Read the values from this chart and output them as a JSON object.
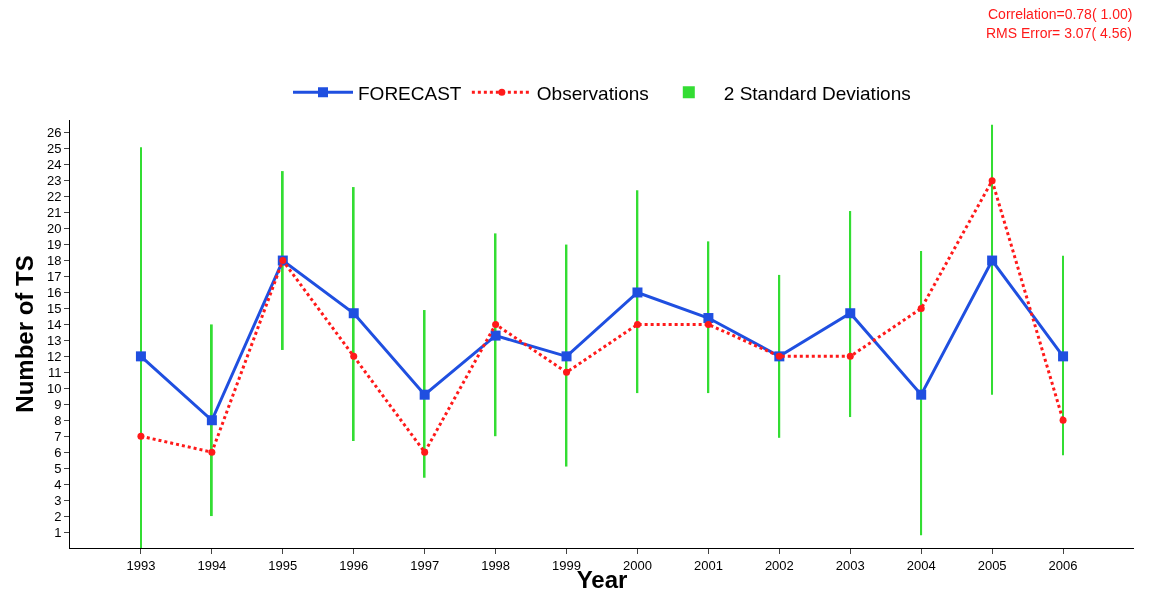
{
  "chart_data": {
    "type": "line",
    "xlabel": "Year",
    "ylabel": "Number of TS",
    "categories": [
      "1993",
      "1994",
      "1995",
      "1996",
      "1997",
      "1998",
      "1999",
      "2000",
      "2001",
      "2002",
      "2003",
      "2004",
      "2005",
      "2006"
    ],
    "series": [
      {
        "name": "FORECAST",
        "color": "#1f4fe0",
        "marker": "square",
        "line_style": "solid",
        "values": [
          12,
          8,
          18,
          14.7,
          9.6,
          13.3,
          12,
          16,
          14.4,
          12,
          14.7,
          9.6,
          18,
          12
        ]
      },
      {
        "name": "Observations",
        "color": "#ff1a1a",
        "marker": "circle",
        "line_style": "dotted",
        "values": [
          7,
          6,
          18,
          12,
          6,
          14,
          11,
          14,
          14,
          12,
          12,
          15,
          23,
          8
        ]
      },
      {
        "name": "2 Standard Deviations",
        "type": "bar",
        "color": "#33dd33",
        "base": [
          0,
          2,
          12.4,
          6.7,
          4.4,
          7,
          5.1,
          9.7,
          9.7,
          6.9,
          8.2,
          0.8,
          9.6,
          5.8
        ],
        "values": [
          25.1,
          12,
          11.2,
          15.9,
          10.5,
          12.7,
          13.9,
          12.7,
          9.5,
          10.2,
          12.9,
          17.8,
          16.9,
          12.5
        ]
      }
    ],
    "ylim": [
      0,
      26.8
    ],
    "yticks": [
      1,
      2,
      3,
      4,
      5,
      6,
      7,
      8,
      9,
      10,
      11,
      12,
      13,
      14,
      15,
      16,
      17,
      18,
      19,
      20,
      21,
      22,
      23,
      24,
      25,
      26
    ],
    "grid": false,
    "legend": "top",
    "annotations": [
      "Correlation=0.78( 1.00)",
      "RMS Error= 3.07( 4.56)"
    ]
  }
}
